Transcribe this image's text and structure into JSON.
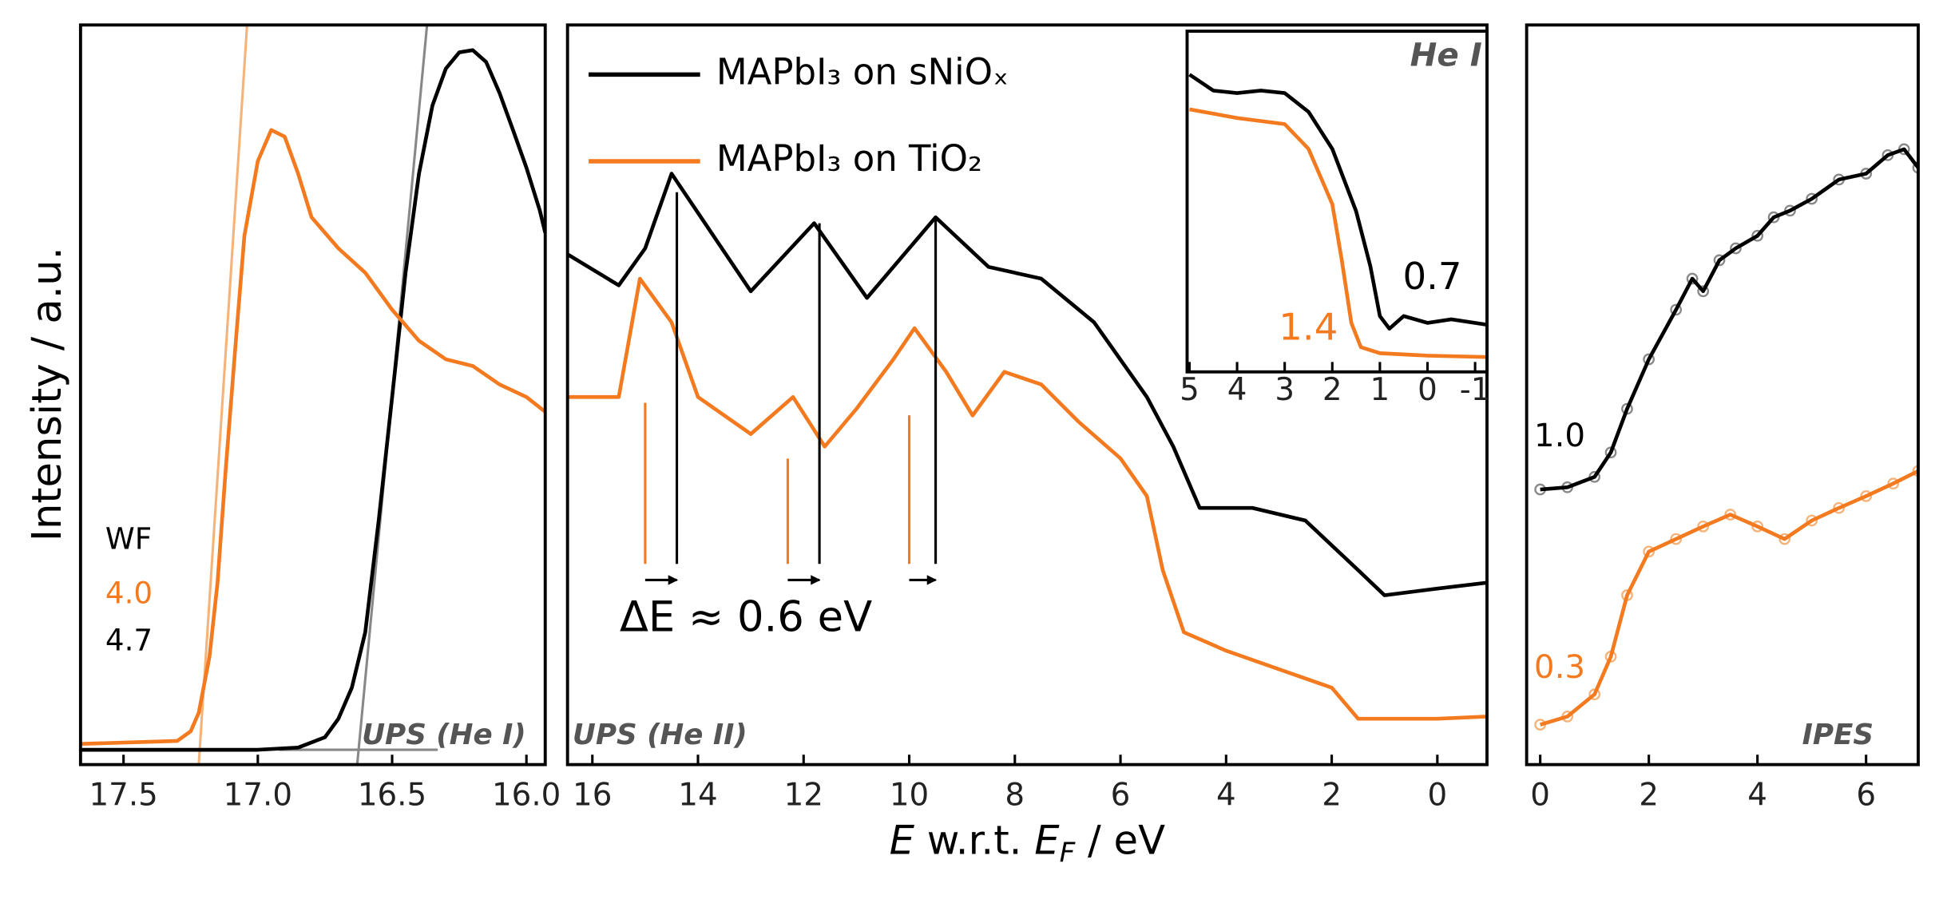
{
  "chart_data": [
    {
      "type": "line",
      "ylabel": "Intensity / a.u.",
      "xlim": [
        17.66,
        15.93
      ],
      "ylim": [
        0,
        100
      ],
      "xticks": [
        17.5,
        {
          "value": 17,
          "label": "17.0"
        },
        16.5,
        {
          "value": 16,
          "label": "16.0"
        }
      ],
      "series": [
        {
          "color": "#000000",
          "x": [
            17.66,
            17.0,
            16.85,
            16.75,
            16.7,
            16.65,
            16.6,
            16.55,
            16.5,
            16.45,
            16.4,
            16.35,
            16.3,
            16.25,
            16.2,
            16.15,
            16.1,
            16.05,
            16.0,
            15.95,
            15.93
          ],
          "values": [
            2.0,
            2.0,
            2.3,
            3.7,
            6.2,
            10.4,
            17.9,
            33.0,
            49.7,
            66.5,
            79.9,
            89.1,
            94.1,
            96.3,
            96.6,
            95.0,
            90.8,
            85.8,
            80.7,
            74.9,
            71.9
          ]
        },
        {
          "color": "#f47a20",
          "x": [
            17.66,
            17.3,
            17.25,
            17.22,
            17.18,
            17.15,
            17.12,
            17.08,
            17.05,
            17.0,
            16.95,
            16.9,
            16.85,
            16.8,
            16.7,
            16.6,
            16.5,
            16.4,
            16.3,
            16.2,
            16.1,
            16.0,
            15.93
          ],
          "values": [
            2.8,
            3.2,
            4.5,
            7.0,
            14.6,
            24.6,
            39.7,
            58.1,
            71.5,
            81.6,
            85.8,
            84.9,
            79.9,
            74.0,
            69.8,
            66.5,
            61.5,
            57.3,
            54.8,
            53.9,
            51.4,
            49.7,
            47.7
          ]
        }
      ],
      "fit_lines": [
        {
          "color": "#f5b37a",
          "x": [
            17.22,
            17.04
          ],
          "y": [
            0,
            100
          ]
        },
        {
          "color": "#888888",
          "x": [
            16.63,
            16.37
          ],
          "y": [
            0,
            100
          ]
        },
        {
          "color": "#888888",
          "x": [
            16.92,
            16.33
          ],
          "y": [
            2,
            2
          ]
        }
      ],
      "annotations": [
        {
          "text": "WF",
          "color": "#000000"
        },
        {
          "text": "4.0",
          "color": "#f47a20"
        },
        {
          "text": "4.7",
          "color": "#000000"
        },
        {
          "text": "UPS (He I)",
          "color": "#555555"
        }
      ]
    },
    {
      "type": "line",
      "xlabel": [
        "E",
        " w.r.t. ",
        "E",
        "F",
        " / eV"
      ],
      "xlim": [
        16.47,
        -0.94
      ],
      "ylim": [
        0,
        100
      ],
      "xticks": [
        16,
        14,
        12,
        10,
        8,
        6,
        4,
        2,
        0
      ],
      "legend": "upper left",
      "series": [
        {
          "name": "MAPbI₃ on sNiOₓ",
          "color": "#000000",
          "x": [
            16.47,
            15.5,
            15.0,
            14.5,
            13,
            11.8,
            10.8,
            9.5,
            8.5,
            7.5,
            6.5,
            5.5,
            5,
            4.5,
            3.5,
            2.5,
            1.5,
            1,
            0,
            -0.94
          ],
          "values": [
            69.0,
            64.8,
            69.8,
            79.9,
            64.0,
            73.2,
            63.1,
            74.0,
            67.3,
            65.7,
            59.8,
            49.7,
            43.0,
            34.7,
            34.7,
            33.0,
            26.3,
            22.9,
            23.8,
            24.6
          ]
        },
        {
          "name": "MAPbI₃ on TiO₂",
          "color": "#f47a20",
          "x": [
            16.47,
            15.5,
            15.1,
            14.5,
            14,
            13,
            12.2,
            11.6,
            11,
            10.3,
            9.9,
            9.3,
            8.8,
            8.2,
            7.5,
            6.8,
            6,
            5.5,
            5.2,
            4.8,
            4,
            3,
            2,
            1.5,
            0,
            -0.94
          ],
          "values": [
            49.7,
            49.7,
            65.7,
            59.8,
            49.7,
            44.7,
            49.7,
            43.0,
            48.1,
            54.8,
            59.0,
            53.1,
            47.2,
            53.1,
            51.4,
            46.4,
            41.4,
            36.3,
            26.3,
            17.9,
            15.4,
            12.9,
            10.4,
            6.2,
            6.2,
            6.5
          ]
        }
      ],
      "peak_markers": {
        "black": [
          14.4,
          11.7,
          9.5
        ],
        "orange": [
          15.0,
          12.3,
          10.0
        ]
      },
      "annotations": [
        {
          "text": "ΔE ≈ 0.6 eV",
          "color": "#000000"
        },
        {
          "text": "UPS (He II)",
          "color": "#555555"
        }
      ]
    },
    {
      "type": "line",
      "xlim": [
        5.05,
        -1.25
      ],
      "ylim": [
        1,
        1000
      ],
      "yscale": "log",
      "xticks": [
        5,
        4,
        3,
        2,
        1,
        0,
        -1
      ],
      "series": [
        {
          "color": "#000000",
          "x": [
            5,
            4.5,
            4,
            3.5,
            3,
            2.5,
            2,
            1.5,
            1.2,
            1.0,
            0.8,
            0.5,
            0,
            -0.5,
            -1.25
          ],
          "values": [
            415,
            300,
            285,
            300,
            285,
            195,
            92,
            26,
            8.5,
            3.1,
            2.4,
            3.1,
            2.7,
            2.9,
            2.6
          ]
        },
        {
          "color": "#f47a20",
          "x": [
            5,
            4,
            3,
            2.5,
            2,
            1.8,
            1.6,
            1.4,
            1.0,
            0,
            -1.25
          ],
          "values": [
            205,
            172,
            152,
            92,
            30,
            9.6,
            2.7,
            1.65,
            1.46,
            1.39,
            1.35
          ]
        }
      ],
      "annotations": [
        {
          "text": "He I",
          "color": "#555555"
        },
        {
          "text": "0.7",
          "color": "#000000"
        },
        {
          "text": "1.4",
          "color": "#f47a20"
        }
      ]
    },
    {
      "type": "line",
      "xlim": [
        -0.25,
        6.96
      ],
      "ylim": [
        0,
        100
      ],
      "xticks": [
        0,
        2,
        4,
        6
      ],
      "series": [
        {
          "color": "#000000",
          "marker_color": "#888888",
          "x": [
            0,
            0.5,
            1,
            1.3,
            1.6,
            2,
            2.5,
            2.8,
            3,
            3.3,
            3.6,
            4,
            4.3,
            4.6,
            5,
            5.5,
            6,
            6.4,
            6.7,
            6.96
          ],
          "values": [
            37.2,
            37.5,
            38.9,
            42.2,
            48.1,
            54.8,
            61.5,
            65.7,
            64.0,
            68.2,
            69.8,
            71.5,
            74.0,
            74.9,
            76.5,
            79.1,
            79.9,
            82.4,
            83.2,
            80.7
          ]
        },
        {
          "color": "#f47a20",
          "marker_color": "#f5b37a",
          "x": [
            0,
            0.5,
            1,
            1.3,
            1.6,
            2,
            2.5,
            3,
            3.5,
            4,
            4.5,
            5,
            5.5,
            6,
            6.5,
            6.96
          ],
          "values": [
            5.4,
            6.5,
            9.5,
            14.6,
            22.9,
            28.8,
            30.5,
            32.2,
            33.8,
            32.2,
            30.5,
            33.0,
            34.7,
            36.3,
            38.0,
            39.7
          ]
        }
      ],
      "annotations": [
        {
          "text": "1.0",
          "color": "#000000"
        },
        {
          "text": "0.3",
          "color": "#f47a20"
        },
        {
          "text": "IPES",
          "color": "#555555"
        }
      ]
    }
  ]
}
